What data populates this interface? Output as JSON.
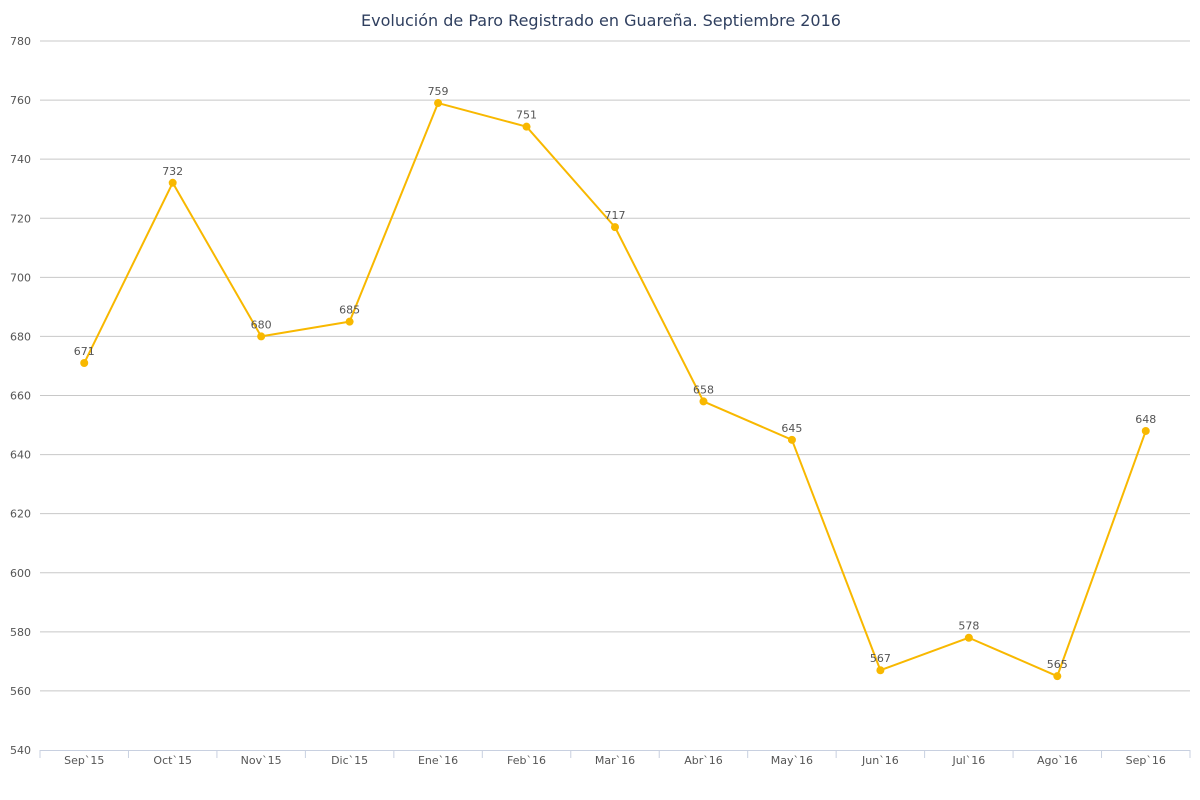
{
  "chart_data": {
    "type": "line",
    "title": "Evolución de Paro Registrado en Guareña. Septiembre 2016",
    "xlabel": "",
    "ylabel": "",
    "categories": [
      "Sep`15",
      "Oct`15",
      "Nov`15",
      "Dic`15",
      "Ene`16",
      "Feb`16",
      "Mar`16",
      "Abr`16",
      "May`16",
      "Jun`16",
      "Jul`16",
      "Ago`16",
      "Sep`16"
    ],
    "series": [
      {
        "values": [
          671,
          732,
          680,
          685,
          759,
          751,
          717,
          658,
          645,
          567,
          578,
          565,
          648
        ]
      }
    ],
    "ylim": [
      540,
      780
    ],
    "yticks": [
      540,
      560,
      580,
      600,
      620,
      640,
      660,
      680,
      700,
      720,
      740,
      760,
      780
    ],
    "grid": true,
    "legend": "none",
    "data_labels": true,
    "colors": {
      "series": "#f8b800",
      "grid": "#c8c8c8",
      "axis": "#c8d0e0",
      "title": "#2f3f5f",
      "text": "#555555"
    }
  }
}
